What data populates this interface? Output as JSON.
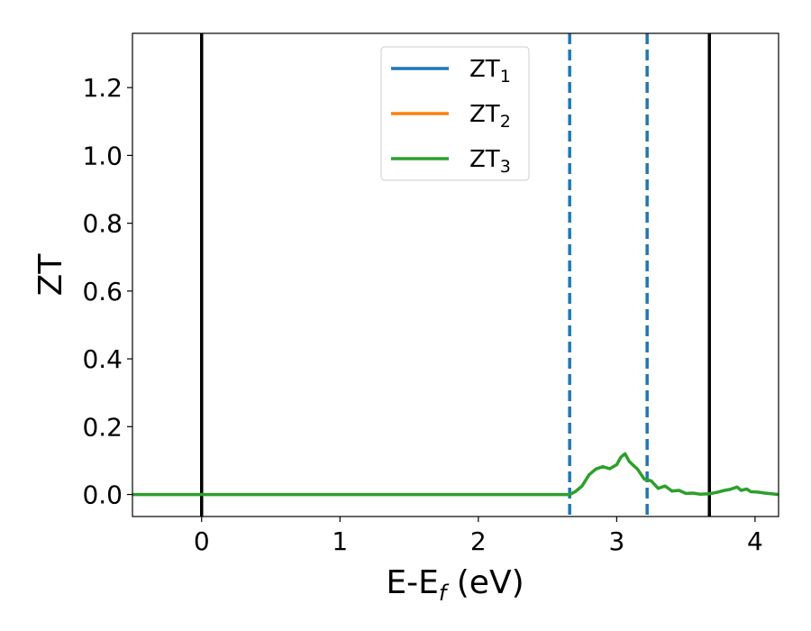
{
  "chart_data": {
    "type": "line",
    "xlabel": "E-E",
    "xlabel_sub": "f",
    "xlabel_unit": " (eV)",
    "ylabel": "ZT",
    "xlim": [
      -0.5,
      4.17
    ],
    "ylim": [
      -0.065,
      1.36
    ],
    "xticks": [
      0,
      1,
      2,
      3,
      4
    ],
    "xtick_labels": [
      "0",
      "1",
      "2",
      "3",
      "4"
    ],
    "yticks": [
      0.0,
      0.2,
      0.4,
      0.6,
      0.8,
      1.0,
      1.2
    ],
    "ytick_labels": [
      "0.0",
      "0.2",
      "0.4",
      "0.6",
      "0.8",
      "1.0",
      "1.2"
    ],
    "grid": false,
    "legend": {
      "placement": "top-center",
      "entries": [
        {
          "base": "ZT",
          "sub": "1",
          "color": "#1f77b4"
        },
        {
          "base": "ZT",
          "sub": "2",
          "color": "#ff7f0e"
        },
        {
          "base": "ZT",
          "sub": "3",
          "color": "#2ca02c"
        }
      ]
    },
    "vlines": [
      {
        "x": 0.0,
        "color": "#000000",
        "style": "solid"
      },
      {
        "x": 3.67,
        "color": "#000000",
        "style": "solid"
      },
      {
        "x": 2.66,
        "color": "#1f77b4",
        "style": "dashed"
      },
      {
        "x": 3.22,
        "color": "#1f77b4",
        "style": "dashed"
      }
    ],
    "series": [
      {
        "name": "ZT₃",
        "color": "#2ca02c",
        "x": [
          -0.5,
          0.0,
          0.5,
          1.0,
          1.5,
          2.0,
          2.5,
          2.6,
          2.66,
          2.7,
          2.75,
          2.8,
          2.85,
          2.9,
          2.95,
          3.0,
          3.03,
          3.06,
          3.09,
          3.12,
          3.15,
          3.2,
          3.25,
          3.3,
          3.35,
          3.4,
          3.45,
          3.5,
          3.55,
          3.6,
          3.67,
          3.72,
          3.78,
          3.82,
          3.87,
          3.9,
          3.94,
          3.97,
          4.02,
          4.07,
          4.12,
          4.17
        ],
        "y": [
          0,
          0,
          0,
          0,
          0,
          0,
          0,
          0,
          0,
          0.008,
          0.025,
          0.058,
          0.075,
          0.082,
          0.076,
          0.088,
          0.11,
          0.12,
          0.098,
          0.086,
          0.075,
          0.045,
          0.04,
          0.018,
          0.025,
          0.01,
          0.012,
          0.003,
          0.004,
          0.001,
          0.002,
          0.006,
          0.012,
          0.015,
          0.022,
          0.012,
          0.016,
          0.008,
          0.007,
          0.004,
          0.002,
          0.0
        ]
      }
    ]
  }
}
